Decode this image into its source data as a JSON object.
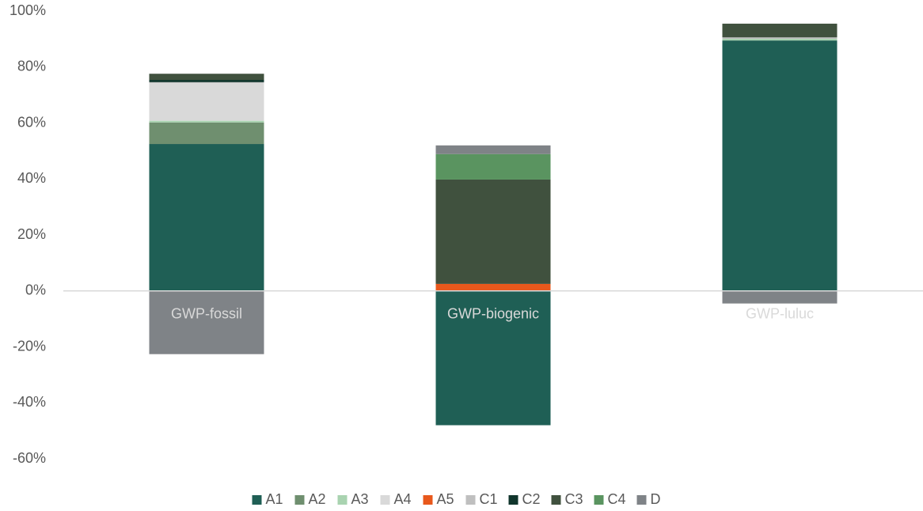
{
  "chart_data": {
    "type": "stacked_bar",
    "categories": [
      "GWP-fossil",
      "GWP-biogenic",
      "GWP-luluc"
    ],
    "series": [
      {
        "name": "A1",
        "color": "#1f5f55",
        "values": [
          52.5,
          -48,
          89.5
        ]
      },
      {
        "name": "A2",
        "color": "#6f8f6f",
        "values": [
          7.7,
          0,
          0
        ]
      },
      {
        "name": "A3",
        "color": "#a9d3b0",
        "values": [
          0.6,
          0,
          0.6
        ]
      },
      {
        "name": "A4",
        "color": "#d9d9d9",
        "values": [
          13.5,
          0,
          0
        ]
      },
      {
        "name": "A5",
        "color": "#e8581c",
        "values": [
          0,
          2.5,
          0
        ]
      },
      {
        "name": "C1",
        "color": "#bfbfbf",
        "values": [
          0.3,
          0,
          0.5
        ]
      },
      {
        "name": "C2",
        "color": "#10352c",
        "values": [
          0.8,
          0,
          0
        ]
      },
      {
        "name": "C3",
        "color": "#40513e",
        "values": [
          2.2,
          37.3,
          4.9
        ]
      },
      {
        "name": "C4",
        "color": "#5a9460",
        "values": [
          0,
          9.1,
          0
        ]
      },
      {
        "name": "D",
        "color": "#7f8387",
        "values": [
          -22.6,
          3.1,
          -4.5
        ]
      }
    ],
    "ylim": [
      -60,
      100
    ],
    "yticks": [
      {
        "value": -60,
        "label": "-60%"
      },
      {
        "value": -40,
        "label": "-40%"
      },
      {
        "value": -20,
        "label": "-20%"
      },
      {
        "value": 0,
        "label": "0%"
      },
      {
        "value": 20,
        "label": "20%"
      },
      {
        "value": 40,
        "label": "40%"
      },
      {
        "value": 60,
        "label": "60%"
      },
      {
        "value": 80,
        "label": "80%"
      },
      {
        "value": 100,
        "label": "100%"
      }
    ],
    "legend": "bottom"
  }
}
